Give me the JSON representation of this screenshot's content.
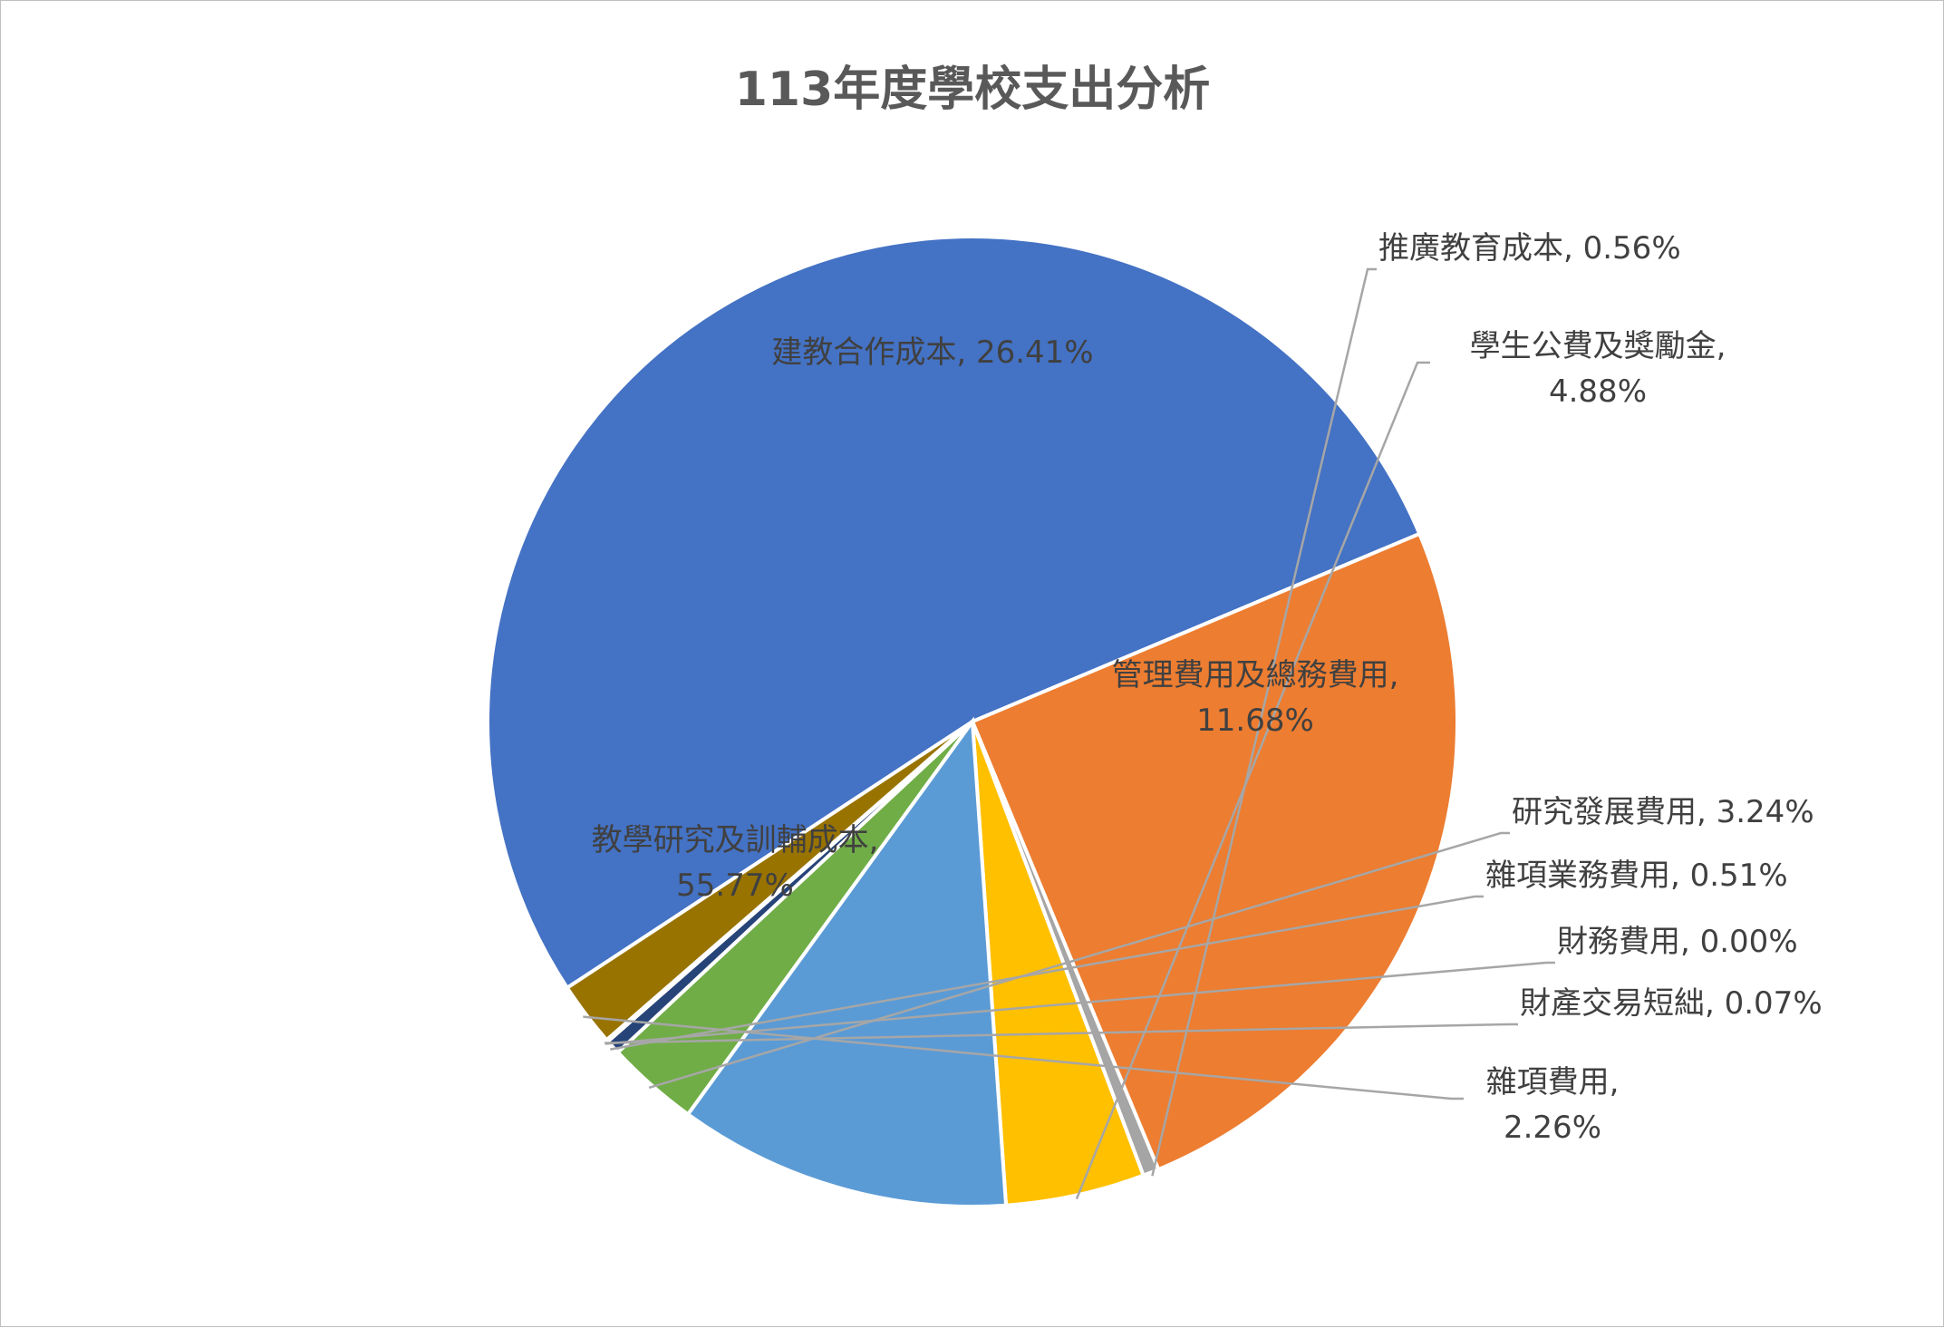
{
  "chart_data": {
    "type": "pie",
    "title": "113年度學校支出分析",
    "slices": [
      {
        "name": "教學研究及訓輔成本",
        "percent_label": "55.77%",
        "value": 55.77,
        "color": "#4472c4"
      },
      {
        "name": "建教合作成本",
        "percent_label": "26.41%",
        "value": 26.41,
        "color": "#ed7d31"
      },
      {
        "name": "推廣教育成本",
        "percent_label": "0.56%",
        "value": 0.56,
        "color": "#a5a5a5"
      },
      {
        "name": "學生公費及獎勵金",
        "percent_label": "4.88%",
        "value": 4.88,
        "color": "#ffc000"
      },
      {
        "name": "管理費用及總務費用",
        "percent_label": "11.68%",
        "value": 11.68,
        "color": "#5b9bd5"
      },
      {
        "name": "研究發展費用",
        "percent_label": "3.24%",
        "value": 3.24,
        "color": "#70ad47"
      },
      {
        "name": "雜項業務費用",
        "percent_label": "0.51%",
        "value": 0.51,
        "color": "#264478"
      },
      {
        "name": "財務費用",
        "percent_label": "0.00%",
        "value": 0.0,
        "color": "#9e480e"
      },
      {
        "name": "財產交易短絀",
        "percent_label": "0.07%",
        "value": 0.07,
        "color": "#636363"
      },
      {
        "name": "雜項費用",
        "percent_label": "2.26%",
        "value": 2.26,
        "color": "#997300"
      }
    ]
  }
}
